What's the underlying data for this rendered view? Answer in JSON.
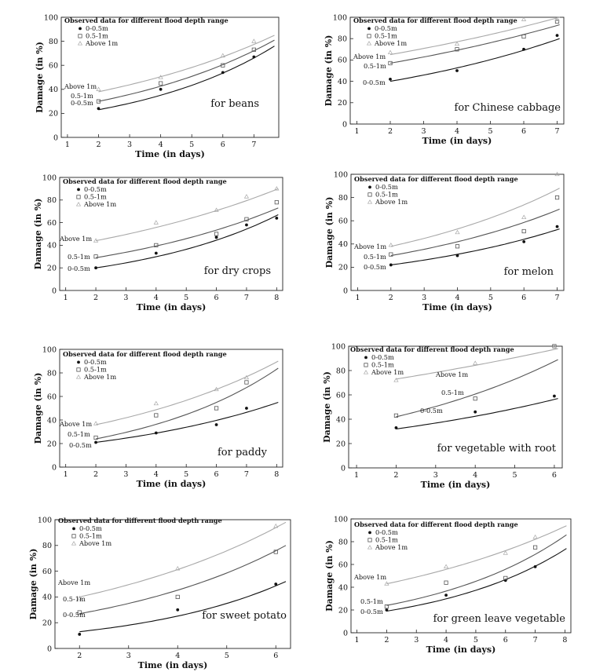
{
  "chart_data": [
    {
      "type": "scatter",
      "crop_label": "for beans",
      "xlabel": "Time (in days)",
      "ylabel": "Damage (in %)",
      "legend_title": "Observed data for different flood depth range",
      "legend_entries": [
        "0-0.5m",
        "0.5-1m",
        "Above 1m"
      ],
      "curve_labels": [
        "0-0.5m",
        "0.5-1m",
        "Above 1m"
      ],
      "xlim": [
        0.8,
        7.8
      ],
      "ylim": [
        0,
        100
      ],
      "xticks": [
        1,
        2,
        3,
        4,
        5,
        6,
        7
      ],
      "yticks": [
        0,
        20,
        40,
        60,
        80,
        100
      ],
      "series": [
        {
          "name": "0-0.5m",
          "x": [
            2,
            4,
            6,
            7
          ],
          "y": [
            24,
            40,
            54,
            67
          ],
          "fit_start": 23,
          "fit_end": 76
        },
        {
          "name": "0.5-1m",
          "x": [
            2,
            4,
            6,
            7
          ],
          "y": [
            30,
            45,
            60,
            73
          ],
          "fit_start": 30,
          "fit_end": 81
        },
        {
          "name": "Above 1m",
          "x": [
            2,
            4,
            6,
            7
          ],
          "y": [
            40,
            50,
            68,
            80
          ],
          "fit_start": 38,
          "fit_end": 85
        }
      ]
    },
    {
      "type": "scatter",
      "crop_label": "for Chinese cabbage",
      "xlabel": "Time (in days)",
      "ylabel": "Damage (in %)",
      "legend_title": "Observed data for different flood depth range",
      "legend_entries": [
        "0-0.5m",
        "0.5-1m",
        "Above 1m"
      ],
      "curve_labels": [
        "0-0.5m",
        "0.5-1m",
        "Above 1m"
      ],
      "xlim": [
        0.8,
        7.2
      ],
      "ylim": [
        0,
        100
      ],
      "xticks": [
        1,
        2,
        3,
        4,
        5,
        6,
        7
      ],
      "yticks": [
        0,
        20,
        40,
        60,
        80,
        100
      ],
      "series": [
        {
          "name": "0-0.5m",
          "x": [
            2,
            4,
            6,
            7
          ],
          "y": [
            42,
            50,
            70,
            83
          ],
          "fit_start": 40,
          "fit_end": 80
        },
        {
          "name": "0.5-1m",
          "x": [
            2,
            4,
            6,
            7
          ],
          "y": [
            57,
            70,
            82,
            96
          ],
          "fit_start": 57,
          "fit_end": 93
        },
        {
          "name": "Above 1m",
          "x": [
            2,
            4,
            6,
            7
          ],
          "y": [
            67,
            75,
            98,
            98
          ],
          "fit_start": 65,
          "fit_end": 100
        }
      ]
    },
    {
      "type": "scatter",
      "crop_label": "for dry crops",
      "xlabel": "Time (in days)",
      "ylabel": "Damage (in %)",
      "legend_title": "Observed data for different flood depth range",
      "legend_entries": [
        "0-0.5m",
        "0.5-1m",
        "Above 1m"
      ],
      "curve_labels": [
        "0-0.5m",
        "0.5-1m",
        "Above 1m"
      ],
      "xlim": [
        0.8,
        8.2
      ],
      "ylim": [
        0,
        100
      ],
      "xticks": [
        1,
        2,
        3,
        4,
        5,
        6,
        7,
        8
      ],
      "yticks": [
        0,
        20,
        40,
        60,
        80,
        100
      ],
      "series": [
        {
          "name": "0-0.5m",
          "x": [
            2,
            4,
            6,
            7,
            8
          ],
          "y": [
            20,
            33,
            47,
            58,
            64
          ],
          "fit_start": 20,
          "fit_end": 67
        },
        {
          "name": "0.5-1m",
          "x": [
            2,
            4,
            6,
            7,
            8
          ],
          "y": [
            30,
            40,
            50,
            63,
            78
          ],
          "fit_start": 29,
          "fit_end": 73
        },
        {
          "name": "Above 1m",
          "x": [
            2,
            4,
            6,
            7,
            8
          ],
          "y": [
            44,
            60,
            71,
            83,
            90
          ],
          "fit_start": 44,
          "fit_end": 90
        }
      ]
    },
    {
      "type": "scatter",
      "crop_label": "for melon",
      "xlabel": "Time (in days)",
      "ylabel": "Damage (in %)",
      "legend_title": "Observed data for different flood depth range",
      "legend_entries": [
        "0-0.5m",
        "0.5-1m",
        "Above 1m"
      ],
      "curve_labels": [
        "0-0.5m",
        "0.5-1m",
        "Above 1m"
      ],
      "xlim": [
        0.8,
        7.2
      ],
      "ylim": [
        0,
        100
      ],
      "xticks": [
        1,
        2,
        3,
        4,
        5,
        6,
        7
      ],
      "yticks": [
        0,
        20,
        40,
        60,
        80,
        100
      ],
      "series": [
        {
          "name": "0-0.5m",
          "x": [
            2,
            4,
            6,
            7
          ],
          "y": [
            22,
            30,
            42,
            55
          ],
          "fit_start": 22,
          "fit_end": 53
        },
        {
          "name": "0.5-1m",
          "x": [
            2,
            4,
            6,
            7
          ],
          "y": [
            31,
            38,
            51,
            80
          ],
          "fit_start": 30,
          "fit_end": 70
        },
        {
          "name": "Above 1m",
          "x": [
            2,
            4,
            6,
            7
          ],
          "y": [
            39,
            50,
            63,
            100
          ],
          "fit_start": 38,
          "fit_end": 88
        }
      ]
    },
    {
      "type": "scatter",
      "crop_label": "for paddy",
      "xlabel": "Time (in days)",
      "ylabel": "Damage (in %)",
      "legend_title": "Observed data for different flood depth range",
      "legend_entries": [
        "0-0.5m",
        "0.5-1m",
        "Above 1m"
      ],
      "curve_labels": [
        "0-0.5m",
        "0.5-1m",
        "Above 1m"
      ],
      "xlim": [
        0.8,
        8.2
      ],
      "ylim": [
        0,
        100
      ],
      "xticks": [
        1,
        2,
        3,
        4,
        5,
        6,
        7,
        8
      ],
      "yticks": [
        0,
        20,
        40,
        60,
        80,
        100
      ],
      "series": [
        {
          "name": "0-0.5m",
          "x": [
            2,
            4,
            6,
            7
          ],
          "y": [
            21,
            29,
            36,
            50
          ],
          "fit_start": 21,
          "fit_end": 55
        },
        {
          "name": "0.5-1m",
          "x": [
            2,
            4,
            6,
            7
          ],
          "y": [
            25,
            44,
            50,
            72
          ],
          "fit_start": 24,
          "fit_end": 84
        },
        {
          "name": "Above 1m",
          "x": [
            2,
            4,
            6,
            7
          ],
          "y": [
            37,
            54,
            66,
            76
          ],
          "fit_start": 36,
          "fit_end": 90
        }
      ]
    },
    {
      "type": "scatter",
      "crop_label": "for vegetable with root",
      "xlabel": "Time (in days)",
      "ylabel": "Damage (in %)",
      "legend_title": "Observed data for different flood depth range",
      "legend_entries": [
        "0-0.5m",
        "0.5-1m",
        "Above 1m"
      ],
      "curve_labels": [
        "0-0.5m",
        "0.5-1m",
        "Above 1m"
      ],
      "xlim": [
        0.8,
        6.2
      ],
      "ylim": [
        0,
        100
      ],
      "xticks": [
        1,
        2,
        3,
        4,
        5,
        6
      ],
      "yticks": [
        0,
        20,
        40,
        60,
        80,
        100
      ],
      "series": [
        {
          "name": "0-0.5m",
          "x": [
            2,
            4,
            6
          ],
          "y": [
            33,
            46,
            59
          ],
          "fit_start": 32,
          "fit_end": 57
        },
        {
          "name": "0.5-1m",
          "x": [
            2,
            4,
            6
          ],
          "y": [
            43,
            57,
            100
          ],
          "fit_start": 42,
          "fit_end": 89
        },
        {
          "name": "Above 1m",
          "x": [
            2,
            4,
            6
          ],
          "y": [
            72,
            86,
            100
          ],
          "fit_start": 73,
          "fit_end": 98
        }
      ]
    },
    {
      "type": "scatter",
      "crop_label": "for sweet potato",
      "xlabel": "Time (in days)",
      "ylabel": "Damage (in %)",
      "legend_title": "Observed data for different flood depth range",
      "legend_entries": [
        "0-0.5m",
        "0.5-1m",
        "Above 1m"
      ],
      "curve_labels": [
        "0-0.5m",
        "0.5-1m",
        "Above 1m"
      ],
      "xlim": [
        1.5,
        6.3
      ],
      "ylim": [
        0,
        100
      ],
      "xticks": [
        2,
        3,
        4,
        5,
        6
      ],
      "yticks": [
        0,
        20,
        40,
        60,
        80,
        100
      ],
      "series": [
        {
          "name": "0-0.5m",
          "x": [
            2,
            4,
            6
          ],
          "y": [
            11,
            30,
            50
          ],
          "fit_start": 13,
          "fit_end": 52
        },
        {
          "name": "0.5-1m",
          "x": [
            2,
            4,
            6
          ],
          "y": [
            28,
            40,
            75
          ],
          "fit_start": 27,
          "fit_end": 80
        },
        {
          "name": "Above 1m",
          "x": [
            2,
            4,
            6
          ],
          "y": [
            39,
            62,
            95
          ],
          "fit_start": 40,
          "fit_end": 98
        }
      ]
    },
    {
      "type": "scatter",
      "crop_label": "for green leave vegetable",
      "xlabel": "Time (in days)",
      "ylabel": "Damage (in %)",
      "legend_title": "Observed data for different flood depth range",
      "legend_entries": [
        "0-0.5m",
        "0.5-1m",
        "Above 1m"
      ],
      "curve_labels": [
        "0-0.5m",
        "0.5-1m",
        "Above 1m"
      ],
      "xlim": [
        0.8,
        8.2
      ],
      "ylim": [
        0,
        100
      ],
      "xticks": [
        1,
        2,
        3,
        4,
        5,
        6,
        7,
        8
      ],
      "yticks": [
        0,
        20,
        40,
        60,
        80,
        100
      ],
      "series": [
        {
          "name": "0-0.5m",
          "x": [
            2,
            4,
            6,
            7
          ],
          "y": [
            20,
            33,
            46,
            58
          ],
          "fit_start": 19,
          "fit_end": 74
        },
        {
          "name": "0.5-1m",
          "x": [
            2,
            4,
            6,
            7
          ],
          "y": [
            23,
            44,
            48,
            75
          ],
          "fit_start": 24,
          "fit_end": 86
        },
        {
          "name": "Above 1m",
          "x": [
            2,
            4,
            6,
            7
          ],
          "y": [
            43,
            58,
            70,
            84
          ],
          "fit_start": 43,
          "fit_end": 94
        }
      ]
    }
  ],
  "colors": {
    "0-0.5m": "#111111",
    "0.5-1m": "#555555",
    "Above 1m": "#a8a8a8"
  }
}
